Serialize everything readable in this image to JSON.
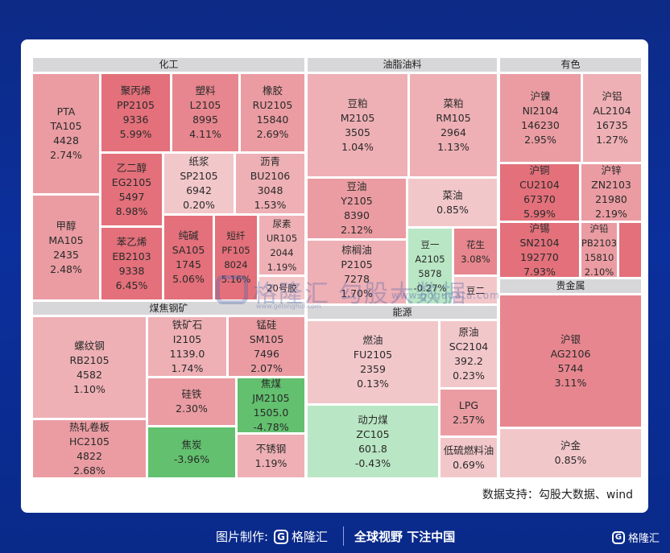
{
  "chart_data": {
    "type": "treemap",
    "groups": [
      {
        "name": "化工",
        "items": [
          {
            "name": "PTA",
            "code": "TA105",
            "price": "4428",
            "change": "2.74%"
          },
          {
            "name": "聚丙烯",
            "code": "PP2105",
            "price": "9336",
            "change": "5.99%"
          },
          {
            "name": "塑料",
            "code": "L2105",
            "price": "8995",
            "change": "4.11%"
          },
          {
            "name": "橡胶",
            "code": "RU2105",
            "price": "15840",
            "change": "2.69%"
          },
          {
            "name": "乙二醇",
            "code": "EG2105",
            "price": "5497",
            "change": "8.98%"
          },
          {
            "name": "纸浆",
            "code": "SP2105",
            "price": "6942",
            "change": "0.20%"
          },
          {
            "name": "沥青",
            "code": "BU2106",
            "price": "3048",
            "change": "1.53%"
          },
          {
            "name": "甲醇",
            "code": "MA105",
            "price": "2435",
            "change": "2.48%"
          },
          {
            "name": "苯乙烯",
            "code": "EB2103",
            "price": "9338",
            "change": "6.45%"
          },
          {
            "name": "纯碱",
            "code": "SA105",
            "price": "1745",
            "change": "5.06%"
          },
          {
            "name": "短纤",
            "code": "PF105",
            "price": "8024",
            "change": "5.16%"
          },
          {
            "name": "尿素",
            "code": "UR105",
            "price": "2044",
            "change": "1.19%"
          },
          {
            "name": "20号胶",
            "code": "",
            "price": "",
            "change": ""
          }
        ]
      },
      {
        "name": "油脂油料",
        "items": [
          {
            "name": "豆粕",
            "code": "M2105",
            "price": "3505",
            "change": "1.04%"
          },
          {
            "name": "菜粕",
            "code": "RM105",
            "price": "2964",
            "change": "1.13%"
          },
          {
            "name": "豆油",
            "code": "Y2105",
            "price": "8390",
            "change": "2.12%"
          },
          {
            "name": "菜油",
            "code": "",
            "price": "",
            "change": "0.85%"
          },
          {
            "name": "棕榈油",
            "code": "P2105",
            "price": "7278",
            "change": "1.70%"
          },
          {
            "name": "豆一",
            "code": "A2105",
            "price": "5878",
            "change": "-0.27%"
          },
          {
            "name": "花生",
            "code": "",
            "price": "",
            "change": "3.08%"
          },
          {
            "name": "豆二",
            "code": "",
            "price": "",
            "change": ""
          }
        ]
      },
      {
        "name": "有色",
        "items": [
          {
            "name": "沪镍",
            "code": "NI2104",
            "price": "146230",
            "change": "2.95%"
          },
          {
            "name": "沪铝",
            "code": "AL2104",
            "price": "16735",
            "change": "1.27%"
          },
          {
            "name": "沪铜",
            "code": "CU2104",
            "price": "67370",
            "change": "5.99%"
          },
          {
            "name": "沪锌",
            "code": "ZN2103",
            "price": "21980",
            "change": "2.19%"
          },
          {
            "name": "沪锡",
            "code": "SN2104",
            "price": "192770",
            "change": "7.93%"
          },
          {
            "name": "沪铅",
            "code": "PB2103",
            "price": "15810",
            "change": "2.10%"
          }
        ]
      },
      {
        "name": "煤焦钢矿",
        "items": [
          {
            "name": "螺纹钢",
            "code": "RB2105",
            "price": "4582",
            "change": "1.10%"
          },
          {
            "name": "铁矿石",
            "code": "I2105",
            "price": "1139.0",
            "change": "1.74%"
          },
          {
            "name": "锰硅",
            "code": "SM105",
            "price": "7496",
            "change": "2.07%"
          },
          {
            "name": "硅铁",
            "code": "",
            "price": "",
            "change": "2.30%"
          },
          {
            "name": "焦煤",
            "code": "JM2105",
            "price": "1505.0",
            "change": "-4.78%"
          },
          {
            "name": "热轧卷板",
            "code": "HC2105",
            "price": "4822",
            "change": "2.68%"
          },
          {
            "name": "焦炭",
            "code": "",
            "price": "",
            "change": "-3.96%"
          },
          {
            "name": "不锈钢",
            "code": "",
            "price": "",
            "change": "1.19%"
          }
        ]
      },
      {
        "name": "能源",
        "items": [
          {
            "name": "燃油",
            "code": "FU2105",
            "price": "2359",
            "change": "0.13%"
          },
          {
            "name": "原油",
            "code": "SC2104",
            "price": "392.2",
            "change": "0.23%"
          },
          {
            "name": "LPG",
            "code": "",
            "price": "",
            "change": "2.57%"
          },
          {
            "name": "动力煤",
            "code": "ZC105",
            "price": "601.8",
            "change": "-0.43%"
          },
          {
            "name": "低硫燃料油",
            "code": "",
            "price": "",
            "change": "0.69%"
          }
        ]
      },
      {
        "name": "贵金属",
        "items": [
          {
            "name": "沪银",
            "code": "AG2106",
            "price": "5744",
            "change": "3.11%"
          },
          {
            "name": "沪金",
            "code": "",
            "price": "",
            "change": "0.85%"
          }
        ]
      }
    ]
  },
  "colors": {
    "background": "#0b2f9c",
    "header": "#d7d7d9",
    "up_scale": [
      "#f2c7ca",
      "#eeb0b5",
      "#ea9ca2",
      "#e7868e",
      "#e3707a"
    ],
    "down_scale": [
      "#b9e6c4",
      "#8fd49d",
      "#62c06e"
    ]
  },
  "footer": {
    "source": "数据支持：勾股大数据、wind",
    "made_by": "图片制作:",
    "brand": "格隆汇",
    "slogan": "全球视野 下注中国",
    "brand_right": "格隆汇"
  },
  "watermark": {
    "text1": "格隆汇",
    "text2": "勾股大数据",
    "url_small": "www.gelonghui.com",
    "url_large": "www.gogudata.com"
  }
}
